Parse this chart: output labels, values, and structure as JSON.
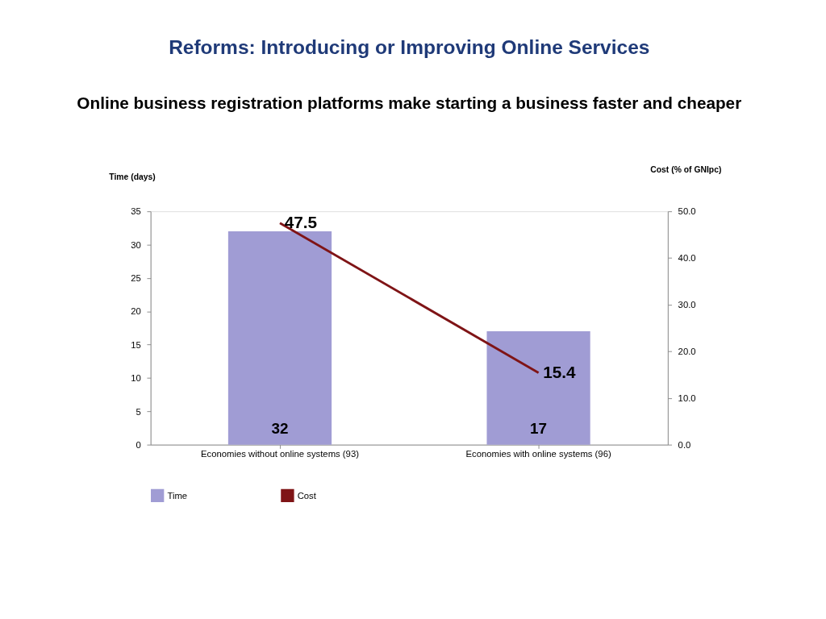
{
  "chart_data": {
    "type": "bar",
    "title": "Reforms: Introducing or Improving Online Services",
    "subtitle": "Online business registration platforms make starting a business faster and cheaper",
    "ylabel": "Time (days)",
    "y2label": "Cost (% of GNIpc)",
    "categories": [
      "Economies without online systems (93)",
      "Economies with online systems (96)"
    ],
    "series": [
      {
        "name": "Time",
        "color": "#a09cd4",
        "values": [
          32,
          17
        ]
      },
      {
        "name": "Cost",
        "type": "line",
        "axis": "y2",
        "color": "#7f1416",
        "values": [
          47.5,
          15.4
        ]
      }
    ],
    "ylim": [
      0,
      35
    ],
    "yticks": [
      0,
      5,
      10,
      15,
      20,
      25,
      30,
      35
    ],
    "y2lim": [
      0,
      50
    ],
    "y2ticks": [
      {
        "value": 0,
        "label": "0.0"
      },
      {
        "value": 10,
        "label": "10.0"
      },
      {
        "value": 20,
        "label": "20.0"
      },
      {
        "value": 30,
        "label": "30.0"
      },
      {
        "value": 40,
        "label": "40.0"
      },
      {
        "value": 50,
        "label": "50.0"
      }
    ],
    "data_labels": true,
    "grid": false,
    "legend": "bottom",
    "marker": "none",
    "line_style": "solid"
  }
}
